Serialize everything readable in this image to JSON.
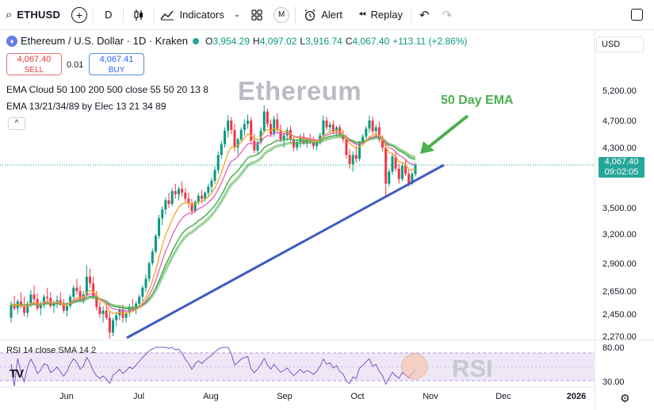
{
  "toolbar": {
    "symbol": "ETHUSD",
    "interval": "D",
    "indicators_label": "Indicators",
    "alert_label": "Alert",
    "replay_label": "Replay",
    "badge": "M"
  },
  "legend": {
    "title": "Ethereum / U.S. Dollar · 1D · Kraken",
    "o_key": "O",
    "o_val": "3,954.29",
    "h_key": "H",
    "h_val": "4,097.02",
    "l_key": "L",
    "l_val": "3,916.74",
    "c_key": "C",
    "c_val": "4,067.40",
    "change": "+113.11 (+2.86%)",
    "sell_price": "4,067.40",
    "sell_label": "SELL",
    "spread": "0.01",
    "buy_price": "4,067.41",
    "buy_label": "BUY",
    "ema_cloud_name": "EMA Cloud",
    "ema_cloud_params": "50 100 200 500 close 55 50 20 13 8",
    "ema_set_name": "EMA 13/21/34/89",
    "ema_set_params": "by Elec 13 21 34 89",
    "collapse": "^"
  },
  "currency_button": "USD",
  "price_tag": {
    "price": "4,067.40",
    "countdown": "09:02:05"
  },
  "watermark": "Ethereum",
  "annotation": "50 Day EMA",
  "rsi": {
    "legend": "RSI 14 close SMA 14 2",
    "watermark": "RSI",
    "ticks": [
      "80.00",
      "30.00"
    ]
  },
  "logo_text": "TV",
  "colors": {
    "up": "#089981",
    "down": "#f23645",
    "ema_orange": "#f5a623",
    "ema_pink": "#e85fb8",
    "ema_green": "#4caf50",
    "trendline": "#3f5bc4",
    "annotation": "#4caf50",
    "rsi_line": "#7e57c2",
    "rsi_band": "#ede7f6",
    "highlight": "#f8c8b0"
  },
  "chart_data": {
    "type": "candlestick",
    "y_ticks": [
      "5,200.00",
      "4,700.00",
      "4,300.00",
      "3,500.00",
      "3,200.00",
      "2,900.00",
      "2,650.00",
      "2,450.00",
      "2,270.00"
    ],
    "x_ticks": [
      "Jun",
      "Jul",
      "Aug",
      "Sep",
      "Oct",
      "Nov",
      "Dec",
      "2026"
    ],
    "ohlc": [
      [
        2420,
        2560,
        2380,
        2530
      ],
      [
        2530,
        2610,
        2480,
        2500
      ],
      [
        2500,
        2580,
        2450,
        2560
      ],
      [
        2560,
        2640,
        2500,
        2520
      ],
      [
        2520,
        2600,
        2430,
        2460
      ],
      [
        2460,
        2560,
        2420,
        2540
      ],
      [
        2540,
        2660,
        2510,
        2620
      ],
      [
        2620,
        2700,
        2550,
        2580
      ],
      [
        2580,
        2630,
        2480,
        2500
      ],
      [
        2500,
        2560,
        2440,
        2530
      ],
      [
        2530,
        2620,
        2500,
        2600
      ],
      [
        2600,
        2680,
        2560,
        2590
      ],
      [
        2590,
        2640,
        2500,
        2520
      ],
      [
        2520,
        2570,
        2460,
        2540
      ],
      [
        2540,
        2610,
        2500,
        2570
      ],
      [
        2570,
        2640,
        2520,
        2530
      ],
      [
        2530,
        2580,
        2460,
        2480
      ],
      [
        2480,
        2550,
        2430,
        2520
      ],
      [
        2520,
        2620,
        2500,
        2600
      ],
      [
        2600,
        2700,
        2560,
        2680
      ],
      [
        2680,
        2760,
        2620,
        2650
      ],
      [
        2650,
        2700,
        2560,
        2580
      ],
      [
        2580,
        2650,
        2540,
        2620
      ],
      [
        2620,
        2880,
        2600,
        2780
      ],
      [
        2780,
        2850,
        2680,
        2720
      ],
      [
        2720,
        2780,
        2580,
        2600
      ],
      [
        2600,
        2650,
        2480,
        2510
      ],
      [
        2510,
        2560,
        2420,
        2450
      ],
      [
        2450,
        2520,
        2380,
        2480
      ],
      [
        2480,
        2540,
        2400,
        2420
      ],
      [
        2420,
        2470,
        2250,
        2300
      ],
      [
        2300,
        2420,
        2270,
        2400
      ],
      [
        2400,
        2470,
        2350,
        2440
      ],
      [
        2440,
        2520,
        2400,
        2490
      ],
      [
        2490,
        2530,
        2380,
        2420
      ],
      [
        2420,
        2480,
        2380,
        2460
      ],
      [
        2460,
        2540,
        2430,
        2510
      ],
      [
        2510,
        2580,
        2470,
        2490
      ],
      [
        2490,
        2560,
        2450,
        2540
      ],
      [
        2540,
        2620,
        2500,
        2600
      ],
      [
        2600,
        2700,
        2560,
        2680
      ],
      [
        2680,
        2800,
        2640,
        2760
      ],
      [
        2760,
        2920,
        2730,
        2900
      ],
      [
        2900,
        3050,
        2880,
        3020
      ],
      [
        3020,
        3200,
        3000,
        3180
      ],
      [
        3180,
        3420,
        3150,
        3380
      ],
      [
        3380,
        3520,
        3300,
        3480
      ],
      [
        3480,
        3640,
        3420,
        3600
      ],
      [
        3600,
        3700,
        3500,
        3550
      ],
      [
        3550,
        3760,
        3520,
        3720
      ],
      [
        3720,
        3820,
        3620,
        3680
      ],
      [
        3680,
        3780,
        3600,
        3750
      ],
      [
        3750,
        3850,
        3650,
        3700
      ],
      [
        3700,
        3760,
        3580,
        3620
      ],
      [
        3620,
        3700,
        3500,
        3560
      ],
      [
        3560,
        3620,
        3420,
        3460
      ],
      [
        3460,
        3600,
        3440,
        3580
      ],
      [
        3580,
        3700,
        3540,
        3660
      ],
      [
        3660,
        3740,
        3560,
        3620
      ],
      [
        3620,
        3720,
        3580,
        3700
      ],
      [
        3700,
        3820,
        3660,
        3780
      ],
      [
        3780,
        3900,
        3700,
        3860
      ],
      [
        3860,
        4050,
        3820,
        4000
      ],
      [
        4000,
        4250,
        3950,
        4200
      ],
      [
        4200,
        4400,
        4150,
        4350
      ],
      [
        4350,
        4600,
        4300,
        4550
      ],
      [
        4550,
        4790,
        4450,
        4700
      ],
      [
        4700,
        4760,
        4500,
        4560
      ],
      [
        4560,
        4650,
        4250,
        4300
      ],
      [
        4300,
        4450,
        4200,
        4420
      ],
      [
        4420,
        4600,
        4380,
        4560
      ],
      [
        4560,
        4720,
        4480,
        4650
      ],
      [
        4650,
        4800,
        4580,
        4700
      ],
      [
        4700,
        4760,
        4350,
        4400
      ],
      [
        4400,
        4500,
        4220,
        4260
      ],
      [
        4260,
        4420,
        4200,
        4380
      ],
      [
        4380,
        4600,
        4340,
        4550
      ],
      [
        4550,
        4950,
        4520,
        4850
      ],
      [
        4850,
        4900,
        4600,
        4650
      ],
      [
        4650,
        4720,
        4450,
        4500
      ],
      [
        4500,
        4780,
        4460,
        4720
      ],
      [
        4720,
        4820,
        4520,
        4560
      ],
      [
        4560,
        4640,
        4380,
        4420
      ],
      [
        4420,
        4520,
        4300,
        4480
      ],
      [
        4480,
        4600,
        4400,
        4560
      ],
      [
        4560,
        4620,
        4380,
        4420
      ],
      [
        4420,
        4480,
        4250,
        4300
      ],
      [
        4300,
        4420,
        4260,
        4380
      ],
      [
        4380,
        4500,
        4300,
        4460
      ],
      [
        4460,
        4520,
        4340,
        4360
      ],
      [
        4360,
        4450,
        4300,
        4420
      ],
      [
        4420,
        4500,
        4350,
        4380
      ],
      [
        4380,
        4460,
        4280,
        4320
      ],
      [
        4320,
        4400,
        4260,
        4380
      ],
      [
        4380,
        4520,
        4340,
        4480
      ],
      [
        4480,
        4780,
        4460,
        4700
      ],
      [
        4700,
        4760,
        4560,
        4600
      ],
      [
        4600,
        4680,
        4520,
        4640
      ],
      [
        4640,
        4700,
        4500,
        4540
      ],
      [
        4540,
        4620,
        4460,
        4600
      ],
      [
        4600,
        4640,
        4450,
        4480
      ],
      [
        4480,
        4560,
        4380,
        4420
      ],
      [
        4420,
        4480,
        4150,
        4200
      ],
      [
        4200,
        4280,
        4020,
        4080
      ],
      [
        4080,
        4250,
        3980,
        4200
      ],
      [
        4200,
        4320,
        4100,
        4150
      ],
      [
        4150,
        4400,
        4120,
        4380
      ],
      [
        4380,
        4500,
        4340,
        4460
      ],
      [
        4460,
        4620,
        4420,
        4580
      ],
      [
        4580,
        4780,
        4520,
        4700
      ],
      [
        4700,
        4760,
        4500,
        4540
      ],
      [
        4540,
        4640,
        4480,
        4600
      ],
      [
        4600,
        4680,
        4380,
        4420
      ],
      [
        4420,
        4480,
        4250,
        4300
      ],
      [
        4300,
        4350,
        3650,
        3820
      ],
      [
        3820,
        4020,
        3780,
        3980
      ],
      [
        3980,
        4220,
        3940,
        4180
      ],
      [
        4180,
        4260,
        3980,
        4020
      ],
      [
        4020,
        4080,
        3820,
        3880
      ],
      [
        3880,
        4100,
        3850,
        4060
      ],
      [
        4060,
        4150,
        3920,
        3950
      ],
      [
        3950,
        4000,
        3780,
        3820
      ],
      [
        3820,
        3980,
        3800,
        3950
      ],
      [
        3950,
        4097,
        3917,
        4067
      ]
    ],
    "ema_short_fast": "orange",
    "ema_trendline": {
      "start_price": 2270,
      "end_price": 4020
    },
    "ema50_label": "50 Day EMA",
    "rsi_range": [
      30,
      80
    ]
  }
}
